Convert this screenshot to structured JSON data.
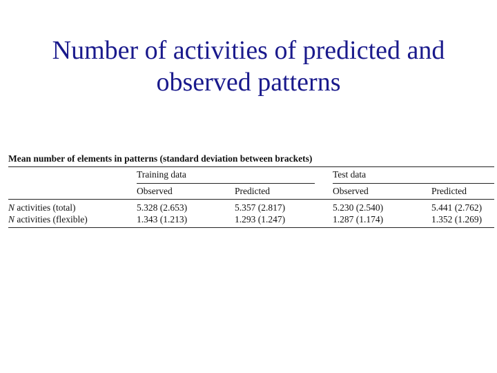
{
  "slide": {
    "title_line1": "Number of activities of predicted and",
    "title_line2": "observed patterns",
    "title_color": "#1a1a8c"
  },
  "table": {
    "caption": "Mean number of elements in patterns (standard deviation between brackets)",
    "groups": [
      "Training data",
      "Test data"
    ],
    "columns": [
      "Observed",
      "Predicted",
      "Observed",
      "Predicted"
    ],
    "rows": [
      {
        "label_var": "N",
        "label_rest": "activities (total)",
        "values": [
          "5.328 (2.653)",
          "5.357 (2.817)",
          "5.230 (2.540)",
          "5.441 (2.762)"
        ]
      },
      {
        "label_var": "N",
        "label_rest": "activities (flexible)",
        "values": [
          "1.343 (1.213)",
          "1.293 (1.247)",
          "1.287 (1.174)",
          "1.352 (1.269)"
        ]
      }
    ]
  }
}
